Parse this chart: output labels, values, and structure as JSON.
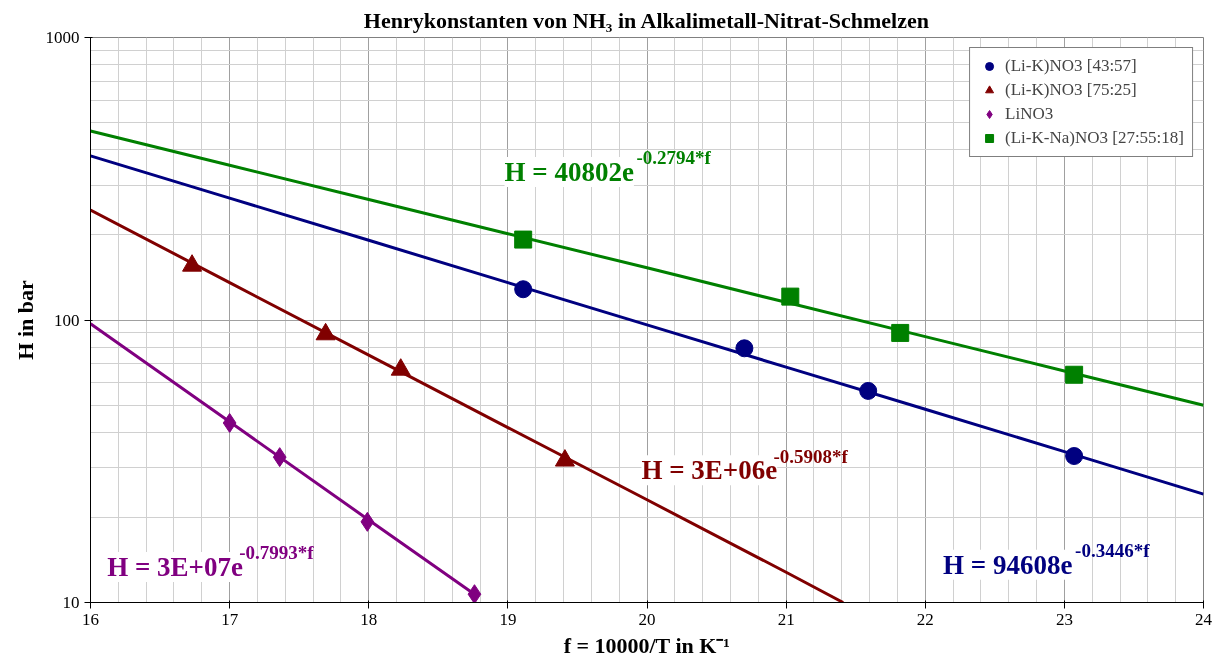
{
  "chart_data": {
    "type": "scatter",
    "title": "Henrykonstanten von NH₃ in Alkalimetall-Nitrat-Schmelzen",
    "xlabel": "f = 10000/T in K⁻¹",
    "ylabel": "H in bar",
    "log": "y",
    "grid": true,
    "legend": "top right",
    "xlim": [
      16,
      24
    ],
    "ylim": [
      10,
      1000
    ],
    "xticks": [
      16,
      17,
      18,
      19,
      20,
      21,
      22,
      23,
      24
    ],
    "yticks": [
      10,
      100,
      1000
    ],
    "series": [
      {
        "name": "(Li-K)NO3 [43:57]",
        "marker": "circle",
        "color": "#000080",
        "x": [
          19.11,
          20.7,
          21.59,
          23.07
        ],
        "values": [
          128.5,
          79.4,
          56.1,
          33.0
        ]
      },
      {
        "name": "(Li-K)NO3 [75:25]",
        "marker": "triangle",
        "color": "#800000",
        "x": [
          16.73,
          17.69,
          18.23,
          19.41
        ],
        "values": [
          155.7,
          89,
          66.7,
          31.8
        ]
      },
      {
        "name": "LiNO3",
        "marker": "diamond",
        "color": "#800080",
        "x": [
          17.0,
          17.36,
          17.99,
          18.76
        ],
        "values": [
          43.2,
          32.7,
          19.3,
          10.7
        ]
      },
      {
        "name": "(Li-K-Na)NO3 [27:55:18]",
        "marker": "square",
        "color": "#008000",
        "x": [
          19.11,
          21.03,
          21.82,
          23.07
        ],
        "values": [
          192.6,
          121,
          90,
          64
        ]
      },
      {
        "type": "line",
        "color": "#000080",
        "x": [
          16,
          17,
          18,
          19,
          20,
          21,
          22,
          23,
          24
        ],
        "values": [
          381,
          270,
          191.5,
          135.6,
          96.1,
          68.1,
          48.3,
          34.2,
          24.2
        ]
      },
      {
        "type": "line",
        "color": "#800000",
        "x": [
          16,
          17,
          18,
          19,
          20,
          21,
          21.41
        ],
        "values": [
          245,
          135.6,
          75.1,
          41.6,
          23.1,
          12.8,
          10
        ]
      },
      {
        "type": "line",
        "color": "#800080",
        "x": [
          16,
          17,
          18,
          18.76
        ],
        "values": [
          97,
          43.6,
          19.6,
          10.7
        ]
      },
      {
        "type": "line",
        "color": "#008000",
        "x": [
          16,
          17,
          18,
          19,
          20,
          21,
          22,
          23,
          24
        ],
        "values": [
          466.8,
          353,
          267,
          202,
          153,
          115.5,
          87.3,
          66.0,
          49.9
        ]
      }
    ],
    "annotations": [
      "H = 94608e$^{-0.3446*f}$",
      "H = 3E+06e$^{-0.5908*f}$",
      "H = 3E+07e$^{-0.7993*f}$",
      "H = 40802e$^{-0.2794*f}$"
    ]
  }
}
